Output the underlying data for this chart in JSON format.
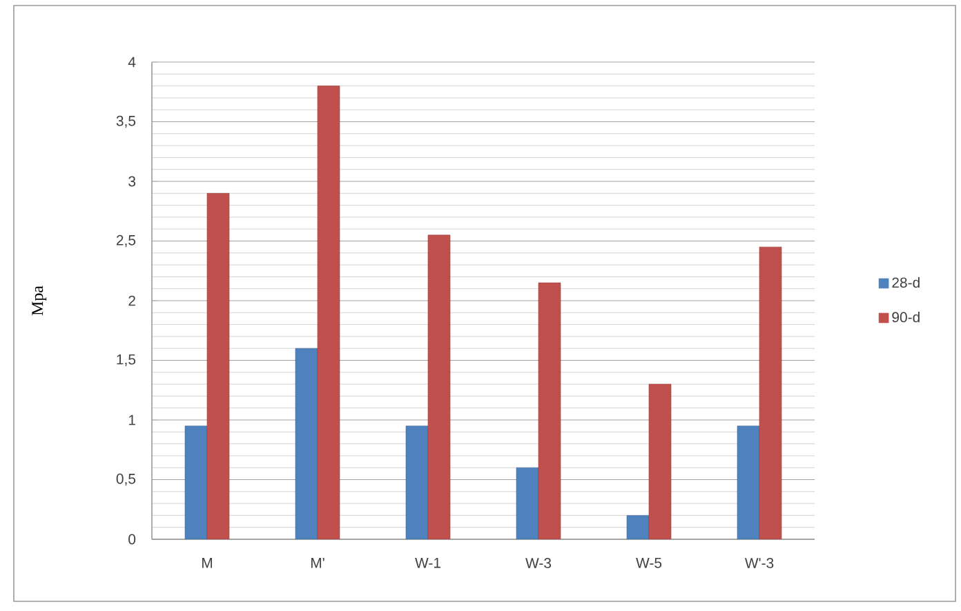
{
  "chart_data": {
    "type": "bar",
    "ylabel": "Mpa",
    "categories": [
      "M",
      "M'",
      "W-1",
      "W-3",
      "W-5",
      "W'-3"
    ],
    "series": [
      {
        "name": "28-d",
        "color": "#4f81bd",
        "values": [
          0.95,
          1.6,
          0.95,
          0.6,
          0.2,
          0.95
        ]
      },
      {
        "name": "90-d",
        "color": "#c0504d",
        "values": [
          2.9,
          3.8,
          2.55,
          2.15,
          1.3,
          2.45
        ]
      }
    ],
    "ylim": [
      0,
      4
    ],
    "yticks": [
      0,
      {
        "value": 0.5,
        "label": "0,5"
      },
      1,
      {
        "value": 1.5,
        "label": "1,5"
      },
      2,
      {
        "value": 2.5,
        "label": "2,5"
      },
      3,
      {
        "value": 3.5,
        "label": "3,5"
      },
      4
    ],
    "grid": "y",
    "legend": "right"
  }
}
